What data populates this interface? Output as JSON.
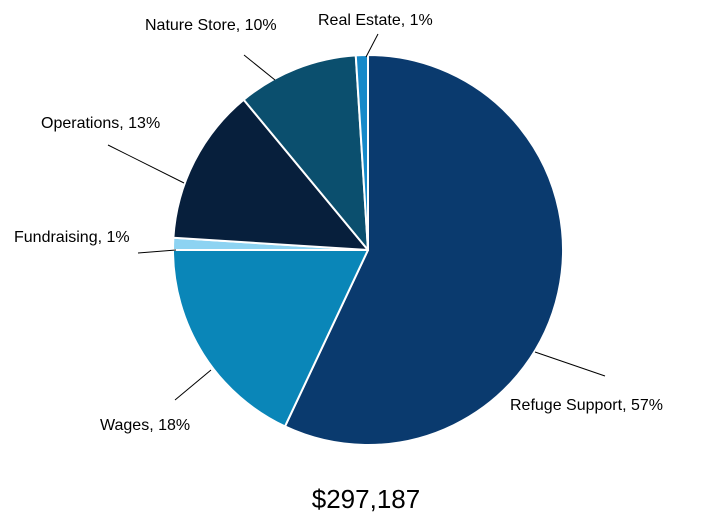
{
  "chart_data": {
    "type": "pie",
    "start_angle_deg": 0,
    "direction": "clockwise",
    "slices": [
      {
        "label": "Refuge Support",
        "percent_label": "57%",
        "value": 57,
        "color": "#0a3a6e",
        "text": "Refuge Support, 57%"
      },
      {
        "label": "Wages",
        "percent_label": "18%",
        "value": 18,
        "color": "#0a86b8",
        "text": "Wages, 18%"
      },
      {
        "label": "Fundraising",
        "percent_label": "1%",
        "value": 1,
        "color": "#8dd3f2",
        "text": "Fundraising, 1%"
      },
      {
        "label": "Operations",
        "percent_label": "13%",
        "value": 13,
        "color": "#071f3c",
        "text": "Operations, 13%"
      },
      {
        "label": "Nature Store",
        "percent_label": "10%",
        "value": 10,
        "color": "#0b4f6e",
        "text": "Nature Store, 10%"
      },
      {
        "label": "Real Estate",
        "percent_label": "1%",
        "value": 1,
        "color": "#1689c9",
        "text": "Real Estate, 1%"
      }
    ],
    "total_text": "$297,187",
    "legend": "none"
  }
}
